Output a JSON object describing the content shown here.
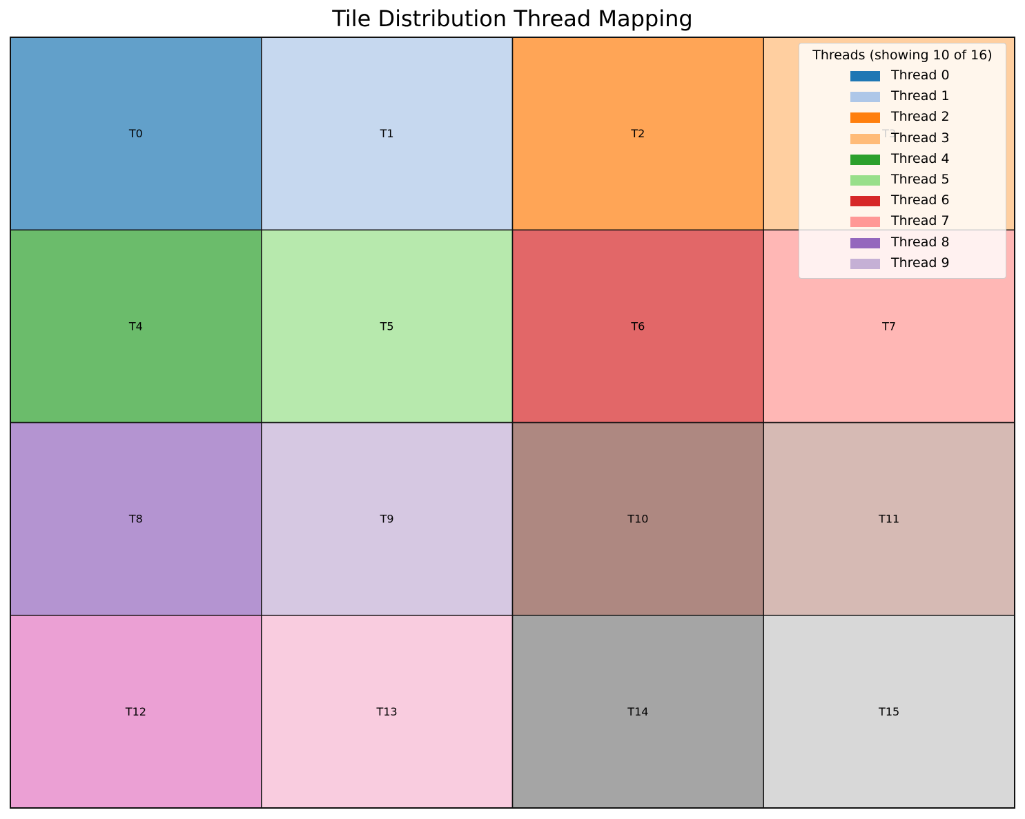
{
  "chart_data": {
    "type": "heatmap",
    "title": "Tile Distribution Thread Mapping",
    "xlabel": "",
    "ylabel": "",
    "grid_rows": 4,
    "grid_cols": 4,
    "tiles": [
      {
        "label": "T0",
        "row": 0,
        "col": 0,
        "thread": 0
      },
      {
        "label": "T1",
        "row": 0,
        "col": 1,
        "thread": 1
      },
      {
        "label": "T2",
        "row": 0,
        "col": 2,
        "thread": 2
      },
      {
        "label": "T3",
        "row": 0,
        "col": 3,
        "thread": 3
      },
      {
        "label": "T4",
        "row": 1,
        "col": 0,
        "thread": 4
      },
      {
        "label": "T5",
        "row": 1,
        "col": 1,
        "thread": 5
      },
      {
        "label": "T6",
        "row": 1,
        "col": 2,
        "thread": 6
      },
      {
        "label": "T7",
        "row": 1,
        "col": 3,
        "thread": 7
      },
      {
        "label": "T8",
        "row": 2,
        "col": 0,
        "thread": 8
      },
      {
        "label": "T9",
        "row": 2,
        "col": 1,
        "thread": 9
      },
      {
        "label": "T10",
        "row": 2,
        "col": 2,
        "thread": 10
      },
      {
        "label": "T11",
        "row": 2,
        "col": 3,
        "thread": 11
      },
      {
        "label": "T12",
        "row": 3,
        "col": 0,
        "thread": 12
      },
      {
        "label": "T13",
        "row": 3,
        "col": 1,
        "thread": 13
      },
      {
        "label": "T14",
        "row": 3,
        "col": 2,
        "thread": 14
      },
      {
        "label": "T15",
        "row": 3,
        "col": 3,
        "thread": 15
      }
    ],
    "thread_colors": [
      "#1f77b4",
      "#aec7e8",
      "#ff7f0e",
      "#ffbb78",
      "#2ca02c",
      "#98df8a",
      "#d62728",
      "#ff9896",
      "#9467bd",
      "#c5b0d5",
      "#8c564b",
      "#c49c94",
      "#e377c2",
      "#f7b6d2",
      "#7f7f7f",
      "#c7c7c7"
    ],
    "tile_alpha": 0.7,
    "legend": {
      "title": "Threads (showing 10 of 16)",
      "position": "top-right",
      "entries": [
        "Thread 0",
        "Thread 1",
        "Thread 2",
        "Thread 3",
        "Thread 4",
        "Thread 5",
        "Thread 6",
        "Thread 7",
        "Thread 8",
        "Thread 9"
      ]
    }
  }
}
